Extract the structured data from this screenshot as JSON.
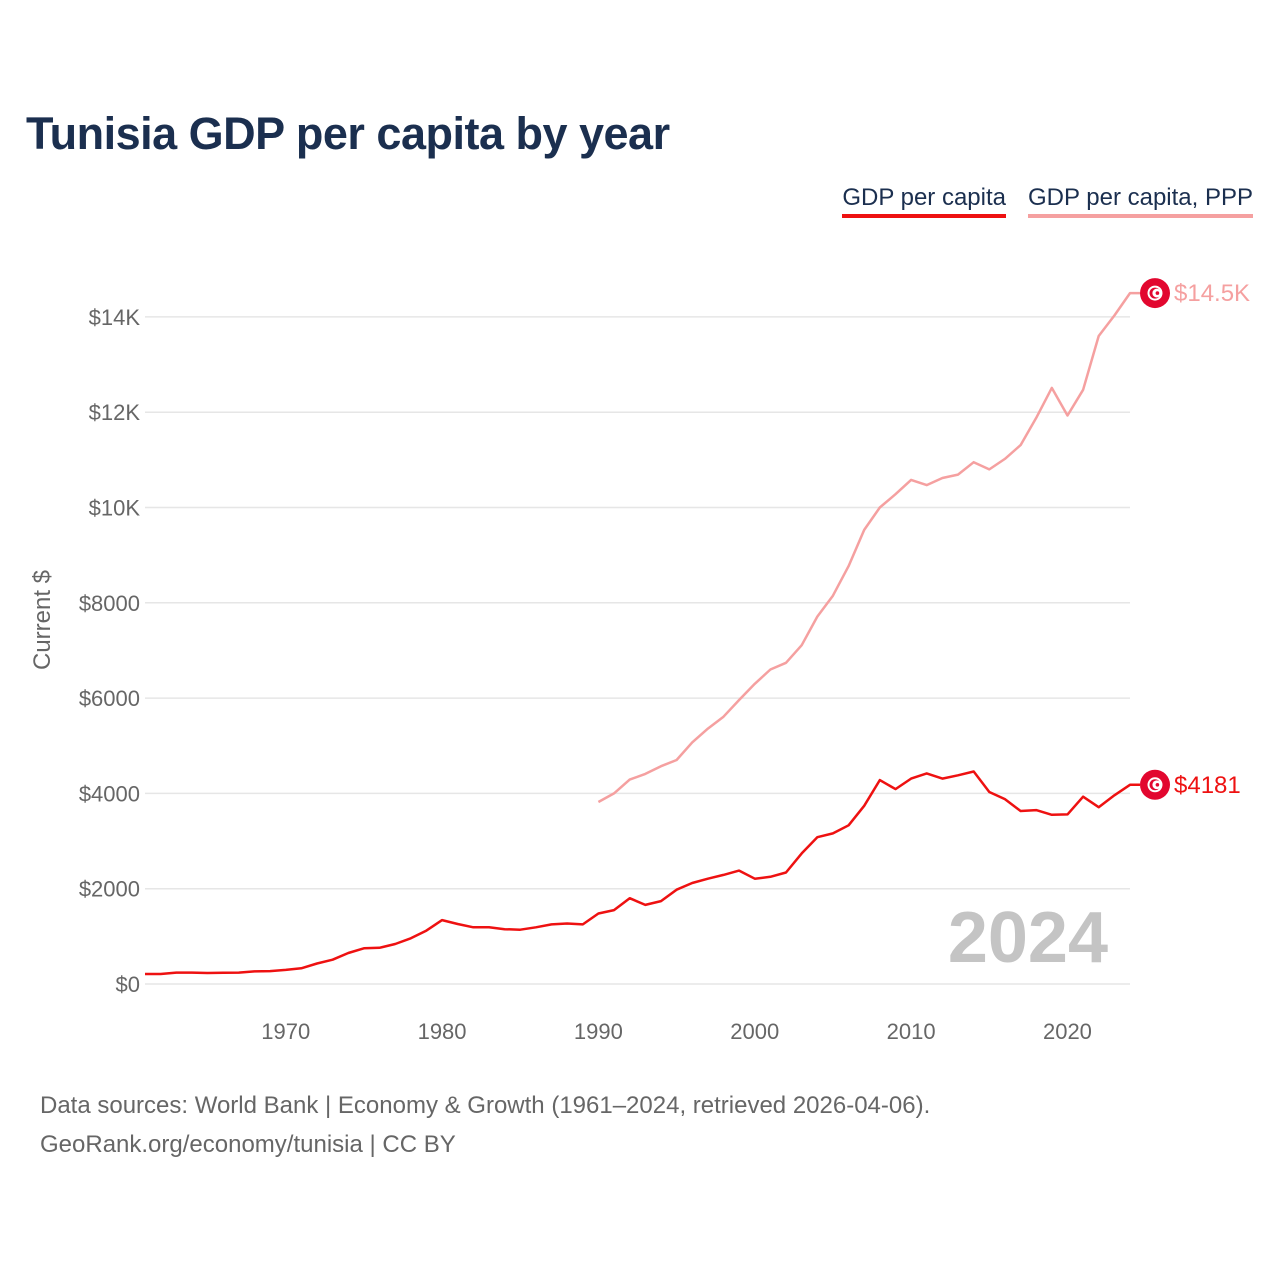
{
  "title": "Tunisia GDP per capita by year",
  "legend": {
    "gdp_label": "GDP per capita",
    "ppp_label": "GDP per capita, PPP"
  },
  "colors": {
    "title": "#1b2f4f",
    "gdp": "#ee1111",
    "ppp": "#f5a0a0",
    "marker": "#e2072f",
    "grid": "#e6e6e6",
    "tick": "#666666",
    "watermark": "#c4c4c4"
  },
  "chart_data": {
    "type": "line",
    "title": "Tunisia GDP per capita by year",
    "xlabel": "",
    "ylabel": "Current $",
    "xlim": [
      1961,
      2024
    ],
    "ylim": [
      0,
      14500
    ],
    "x_ticks": [
      1970,
      1980,
      1990,
      2000,
      2010,
      2020
    ],
    "x_tick_labels": [
      "1970",
      "1980",
      "1990",
      "2000",
      "2010",
      "2020"
    ],
    "y_ticks": [
      0,
      2000,
      4000,
      6000,
      8000,
      10000,
      12000,
      14000
    ],
    "y_tick_labels": [
      "$0",
      "$2000",
      "$4000",
      "$6000",
      "$8000",
      "$10K",
      "$12K",
      "$14K"
    ],
    "grid": true,
    "legend_position": "top-right",
    "watermark_year": "2024",
    "series": [
      {
        "name": "GDP per capita",
        "color": "#ee1111",
        "end_label": "$4181",
        "x": [
          1961,
          1962,
          1963,
          1964,
          1965,
          1966,
          1967,
          1968,
          1969,
          1970,
          1971,
          1972,
          1973,
          1974,
          1975,
          1976,
          1977,
          1978,
          1979,
          1980,
          1981,
          1982,
          1983,
          1984,
          1985,
          1986,
          1987,
          1988,
          1989,
          1990,
          1991,
          1992,
          1993,
          1994,
          1995,
          1996,
          1997,
          1998,
          1999,
          2000,
          2001,
          2002,
          2003,
          2004,
          2005,
          2006,
          2007,
          2008,
          2009,
          2010,
          2011,
          2012,
          2013,
          2014,
          2015,
          2016,
          2017,
          2018,
          2019,
          2020,
          2021,
          2022,
          2023,
          2024
        ],
        "values": [
          210,
          210,
          240,
          240,
          230,
          235,
          240,
          265,
          270,
          295,
          330,
          430,
          510,
          650,
          750,
          760,
          840,
          960,
          1120,
          1340,
          1260,
          1190,
          1190,
          1150,
          1140,
          1190,
          1250,
          1270,
          1250,
          1480,
          1550,
          1800,
          1660,
          1740,
          1980,
          2120,
          2210,
          2290,
          2380,
          2210,
          2250,
          2340,
          2740,
          3080,
          3160,
          3330,
          3740,
          4280,
          4090,
          4310,
          4420,
          4310,
          4380,
          4460,
          4030,
          3880,
          3630,
          3650,
          3550,
          3560,
          3930,
          3710,
          3960,
          4181
        ]
      },
      {
        "name": "GDP per capita, PPP",
        "color": "#f5a0a0",
        "end_label": "$14.5K",
        "x": [
          1990,
          1991,
          1992,
          1993,
          1994,
          1995,
          1996,
          1997,
          1998,
          1999,
          2000,
          2001,
          2002,
          2003,
          2004,
          2005,
          2006,
          2007,
          2008,
          2009,
          2010,
          2011,
          2012,
          2013,
          2014,
          2015,
          2016,
          2017,
          2018,
          2019,
          2020,
          2021,
          2022,
          2023,
          2024
        ],
        "values": [
          3820,
          4000,
          4290,
          4410,
          4570,
          4700,
          5070,
          5360,
          5610,
          5960,
          6300,
          6600,
          6740,
          7110,
          7710,
          8150,
          8770,
          9530,
          10000,
          10280,
          10580,
          10470,
          10620,
          10690,
          10950,
          10800,
          11020,
          11310,
          11880,
          12510,
          11930,
          12470,
          13600,
          14030,
          14500
        ]
      }
    ]
  },
  "footer": {
    "line1": "Data sources: World Bank | Economy & Growth (1961–2024, retrieved 2026-04-06).",
    "line2": "GeoRank.org/economy/tunisia | CC BY"
  }
}
